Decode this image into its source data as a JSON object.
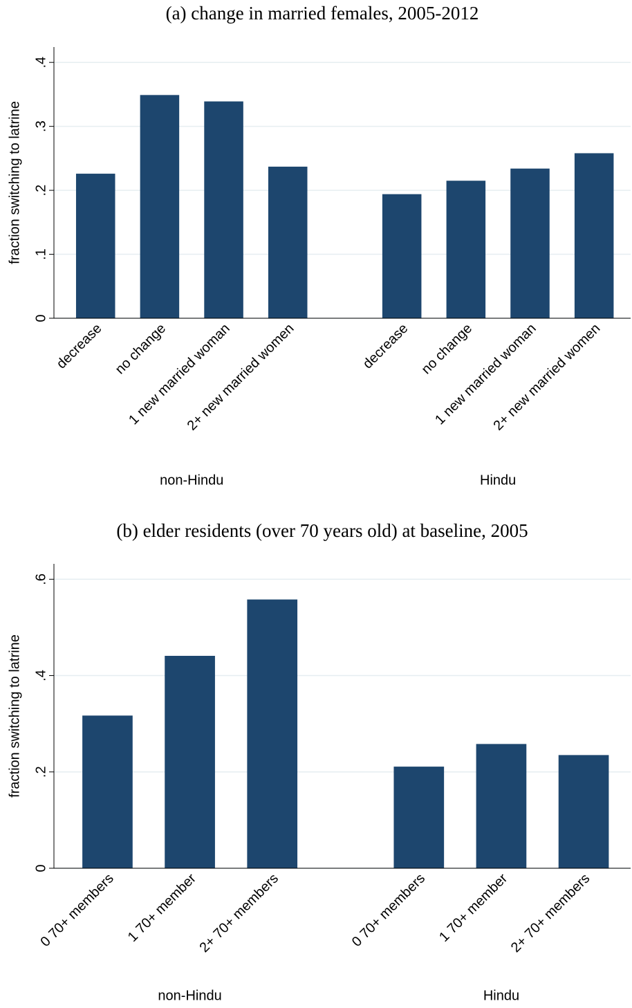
{
  "chart_data": [
    {
      "type": "bar",
      "title": "(a) change in married females, 2005-2012",
      "y_label": "fraction switching to latrine",
      "color": "#1d466e",
      "grid": true,
      "ylim": [
        0,
        0.424
      ],
      "yticks": [
        0,
        {
          "value": 0.1,
          "label": ".1"
        },
        {
          "value": 0.2,
          "label": ".2"
        },
        {
          "value": 0.3,
          "label": ".3"
        },
        {
          "value": 0.4,
          "label": ".4"
        }
      ],
      "groups": [
        {
          "label": "non-Hindu",
          "categories": [
            "decrease",
            "no change",
            "1 new married woman",
            "2+ new married women"
          ],
          "values": [
            0.226,
            0.349,
            0.339,
            0.237
          ]
        },
        {
          "label": "Hindu",
          "categories": [
            "decrease",
            "no change",
            "1 new married woman",
            "2+ new married women"
          ],
          "values": [
            0.194,
            0.215,
            0.234,
            0.258
          ]
        }
      ]
    },
    {
      "type": "bar",
      "title": "(b) elder residents (over 70 years old) at baseline, 2005",
      "y_label": "fraction switching to latrine",
      "color": "#1d466e",
      "grid": true,
      "ylim": [
        0,
        0.632
      ],
      "yticks": [
        0,
        {
          "value": 0.2,
          "label": ".2"
        },
        {
          "value": 0.4,
          "label": ".4"
        },
        {
          "value": 0.6,
          "label": ".6"
        }
      ],
      "groups": [
        {
          "label": "non-Hindu",
          "categories": [
            "0 70+ members",
            "1 70+ member",
            "2+ 70+ members"
          ],
          "values": [
            0.317,
            0.441,
            0.558
          ]
        },
        {
          "label": "Hindu",
          "categories": [
            "0 70+ members",
            "1 70+ member",
            "2+ 70+ members"
          ],
          "values": [
            0.211,
            0.258,
            0.235
          ]
        }
      ]
    }
  ]
}
